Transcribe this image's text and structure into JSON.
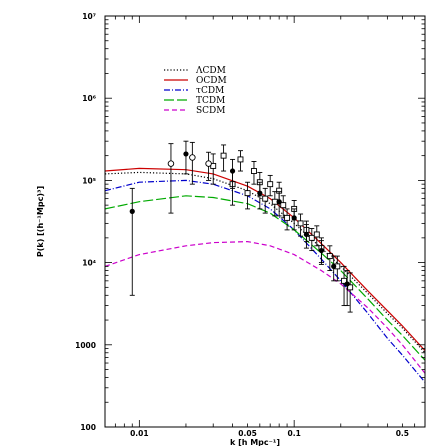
{
  "chart_data": {
    "type": "line",
    "xlabel": "k [h Mpc⁻¹]",
    "ylabel": "P(k)  [(h⁻¹Mpc)³]",
    "xscale": "log",
    "yscale": "log",
    "xlim": [
      0.006,
      0.7
    ],
    "ylim": [
      100,
      10000000
    ],
    "x_ticks": [
      {
        "value": 0.01,
        "label": "0.01"
      },
      {
        "value": 0.05,
        "label": "0.05"
      },
      {
        "value": 0.1,
        "label": "0.1"
      },
      {
        "value": 0.5,
        "label": "0.5"
      }
    ],
    "y_ticks": [
      {
        "value": 100,
        "label": "100"
      },
      {
        "value": 1000,
        "label": "1000"
      },
      {
        "value": 10000,
        "label": "10⁴"
      },
      {
        "value": 100000,
        "label": "10⁵"
      },
      {
        "value": 1000000,
        "label": "10⁶"
      },
      {
        "value": 10000000,
        "label": "10⁷"
      }
    ],
    "legend_position": "top-center",
    "series": [
      {
        "name": "ΛCDM",
        "style": "dotted",
        "color": "#000000",
        "x": [
          0.006,
          0.01,
          0.02,
          0.03,
          0.05,
          0.07,
          0.1,
          0.15,
          0.2,
          0.3,
          0.4,
          0.5,
          0.7
        ],
        "y": [
          120000,
          125000,
          120000,
          105000,
          75000,
          52000,
          30000,
          15000,
          9000,
          4200,
          2400,
          1600,
          800
        ]
      },
      {
        "name": "OCDM",
        "style": "solid",
        "color": "#cc0000",
        "x": [
          0.006,
          0.01,
          0.02,
          0.03,
          0.05,
          0.07,
          0.1,
          0.15,
          0.2,
          0.3,
          0.4,
          0.5,
          0.7
        ],
        "y": [
          130000,
          140000,
          135000,
          120000,
          85000,
          60000,
          35000,
          17000,
          10000,
          4500,
          2600,
          1700,
          850
        ]
      },
      {
        "name": "τCDM",
        "style": "dash-dot",
        "color": "#0000cc",
        "x": [
          0.006,
          0.01,
          0.02,
          0.03,
          0.05,
          0.07,
          0.1,
          0.15,
          0.2,
          0.3,
          0.4,
          0.5,
          0.7
        ],
        "y": [
          75000,
          95000,
          100000,
          90000,
          65000,
          45000,
          25000,
          11000,
          6000,
          2400,
          1200,
          750,
          350
        ]
      },
      {
        "name": "TCDM",
        "style": "long-dash",
        "color": "#00aa00",
        "x": [
          0.006,
          0.01,
          0.02,
          0.03,
          0.05,
          0.07,
          0.1,
          0.15,
          0.2,
          0.3,
          0.4,
          0.5,
          0.7
        ],
        "y": [
          45000,
          55000,
          65000,
          62000,
          52000,
          40000,
          25000,
          13000,
          8000,
          3600,
          2000,
          1300,
          650
        ]
      },
      {
        "name": "SCDM",
        "style": "dashed",
        "color": "#cc00cc",
        "x": [
          0.006,
          0.01,
          0.02,
          0.03,
          0.05,
          0.07,
          0.1,
          0.15,
          0.2,
          0.3,
          0.4,
          0.5,
          0.7
        ],
        "y": [
          9000,
          12500,
          16000,
          17500,
          18000,
          16000,
          12500,
          8000,
          5500,
          2800,
          1600,
          1000,
          450
        ]
      },
      {
        "name": "data (open squares)",
        "marker": "open-square",
        "color": "#000000",
        "x": [
          0.03,
          0.035,
          0.04,
          0.045,
          0.05,
          0.055,
          0.06,
          0.065,
          0.07,
          0.075,
          0.08,
          0.085,
          0.09,
          0.1,
          0.11,
          0.12,
          0.13,
          0.14,
          0.15,
          0.17,
          0.19,
          0.21,
          0.23
        ],
        "y": [
          150000,
          200000,
          90000,
          180000,
          70000,
          130000,
          95000,
          60000,
          90000,
          55000,
          75000,
          50000,
          35000,
          45000,
          30000,
          25000,
          20000,
          22000,
          15000,
          12000,
          9000,
          6000,
          5000
        ],
        "err": [
          60000,
          70000,
          40000,
          50000,
          25000,
          40000,
          30000,
          20000,
          25000,
          18000,
          20000,
          15000,
          10000,
          12000,
          9000,
          7000,
          6000,
          6000,
          5000,
          4000,
          3000,
          3000,
          2500
        ]
      },
      {
        "name": "data (filled circles)",
        "marker": "filled-circle",
        "color": "#000000",
        "x": [
          0.009,
          0.02,
          0.04,
          0.06,
          0.08,
          0.1,
          0.12,
          0.15,
          0.18,
          0.22
        ],
        "y": [
          42000,
          210000,
          130000,
          70000,
          55000,
          35000,
          22000,
          14000,
          9000,
          5500
        ],
        "err": [
          38000,
          90000,
          50000,
          25000,
          18000,
          10000,
          7000,
          4500,
          3000,
          2500
        ]
      },
      {
        "name": "data (open circles)",
        "marker": "open-circle",
        "color": "#000000",
        "x": [
          0.016,
          0.022,
          0.028
        ],
        "y": [
          160000,
          190000,
          160000
        ],
        "err": [
          120000,
          100000,
          60000
        ]
      }
    ]
  }
}
